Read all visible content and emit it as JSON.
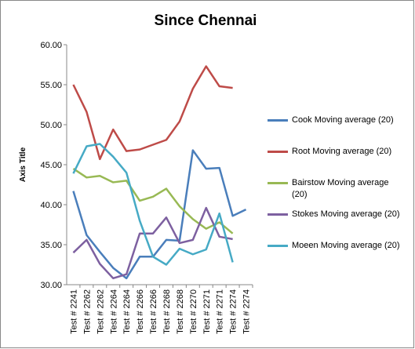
{
  "chart_data": {
    "type": "line",
    "title": "Since Chennai",
    "y_label": "Axis Title",
    "categories": [
      "Test # 2241",
      "Test # 2262",
      "Test # 2262",
      "Test # 2264",
      "Test # 2264",
      "Test # 2266",
      "Test # 2266",
      "Test # 2268",
      "Test # 2268",
      "Test # 2270",
      "Test # 2271",
      "Test # 2271",
      "Test # 2274",
      "Test # 2274"
    ],
    "series": [
      {
        "name": "Cook Moving average (20)",
        "color": "#4a7ebb",
        "values": [
          41.7,
          36.2,
          34.1,
          32.1,
          30.8,
          33.5,
          33.5,
          35.6,
          35.5,
          46.8,
          44.5,
          44.6,
          38.6,
          39.4
        ]
      },
      {
        "name": "Root Moving average (20)",
        "color": "#be4b48",
        "values": [
          55.0,
          51.6,
          45.7,
          49.4,
          46.7,
          46.9,
          47.5,
          48.1,
          50.4,
          54.5,
          57.3,
          54.8,
          54.6,
          null
        ]
      },
      {
        "name": "Bairstow Moving average (20)",
        "color": "#98b954",
        "values": [
          44.5,
          43.4,
          43.6,
          42.8,
          43.0,
          40.5,
          41.0,
          42.0,
          39.8,
          38.2,
          37.0,
          37.8,
          36.4,
          null
        ]
      },
      {
        "name": "Stokes Moving average (20)",
        "color": "#7d60a0",
        "values": [
          34.0,
          35.6,
          32.6,
          30.8,
          31.3,
          36.4,
          36.4,
          38.4,
          35.2,
          35.6,
          39.6,
          36.0,
          35.7,
          null
        ]
      },
      {
        "name": "Moeen Moving average (20)",
        "color": "#46aac5",
        "values": [
          43.9,
          47.3,
          47.6,
          46.0,
          44.0,
          38.0,
          33.5,
          32.5,
          34.5,
          33.8,
          34.4,
          38.9,
          32.8,
          null
        ]
      }
    ],
    "ylim": [
      30,
      60
    ],
    "yticks": [
      {
        "value": 30,
        "label": "30.00"
      },
      {
        "value": 35,
        "label": "35.00"
      },
      {
        "value": 40,
        "label": "40.00"
      },
      {
        "value": 45,
        "label": "45.00"
      },
      {
        "value": 50,
        "label": "50.00"
      },
      {
        "value": 55,
        "label": "55.00"
      },
      {
        "value": 60,
        "label": "60.00"
      }
    ],
    "legend": "right"
  }
}
